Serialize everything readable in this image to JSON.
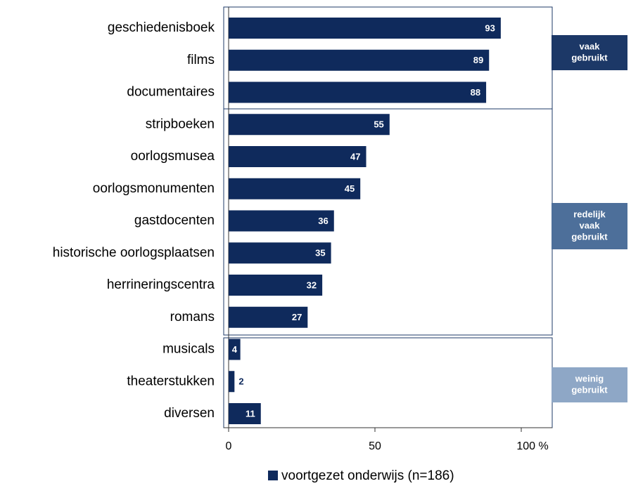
{
  "chart_data": {
    "type": "bar",
    "orientation": "horizontal",
    "categories": [
      "geschiedenisboek",
      "films",
      "documentaires",
      "stripboeken",
      "oorlogsmusea",
      "oorlogsmonumenten",
      "gastdocenten",
      "historische oorlogsplaatsen",
      "herrineringscentra",
      "romans",
      "musicals",
      "theaterstukken",
      "diversen"
    ],
    "series": [
      {
        "name": "voortgezet onderwijs (n=186)",
        "color": "#0f2a5c",
        "values": [
          93,
          89,
          88,
          55,
          47,
          45,
          36,
          35,
          32,
          27,
          4,
          2,
          11
        ]
      }
    ],
    "xlim": [
      0,
      100
    ],
    "xticks": [
      0,
      50,
      {
        "value": 100,
        "label": "100 %"
      }
    ],
    "groups": [
      {
        "label": [
          "vaak",
          "gebruikt"
        ],
        "color": "#1c3867"
      },
      {
        "label": [
          "redelijk",
          "vaak",
          "gebruikt"
        ],
        "color": "#4d6f9a"
      },
      {
        "label": [
          "weinig",
          "gebruikt"
        ],
        "color": "#8ea7c6"
      }
    ],
    "legend": "bottom"
  }
}
